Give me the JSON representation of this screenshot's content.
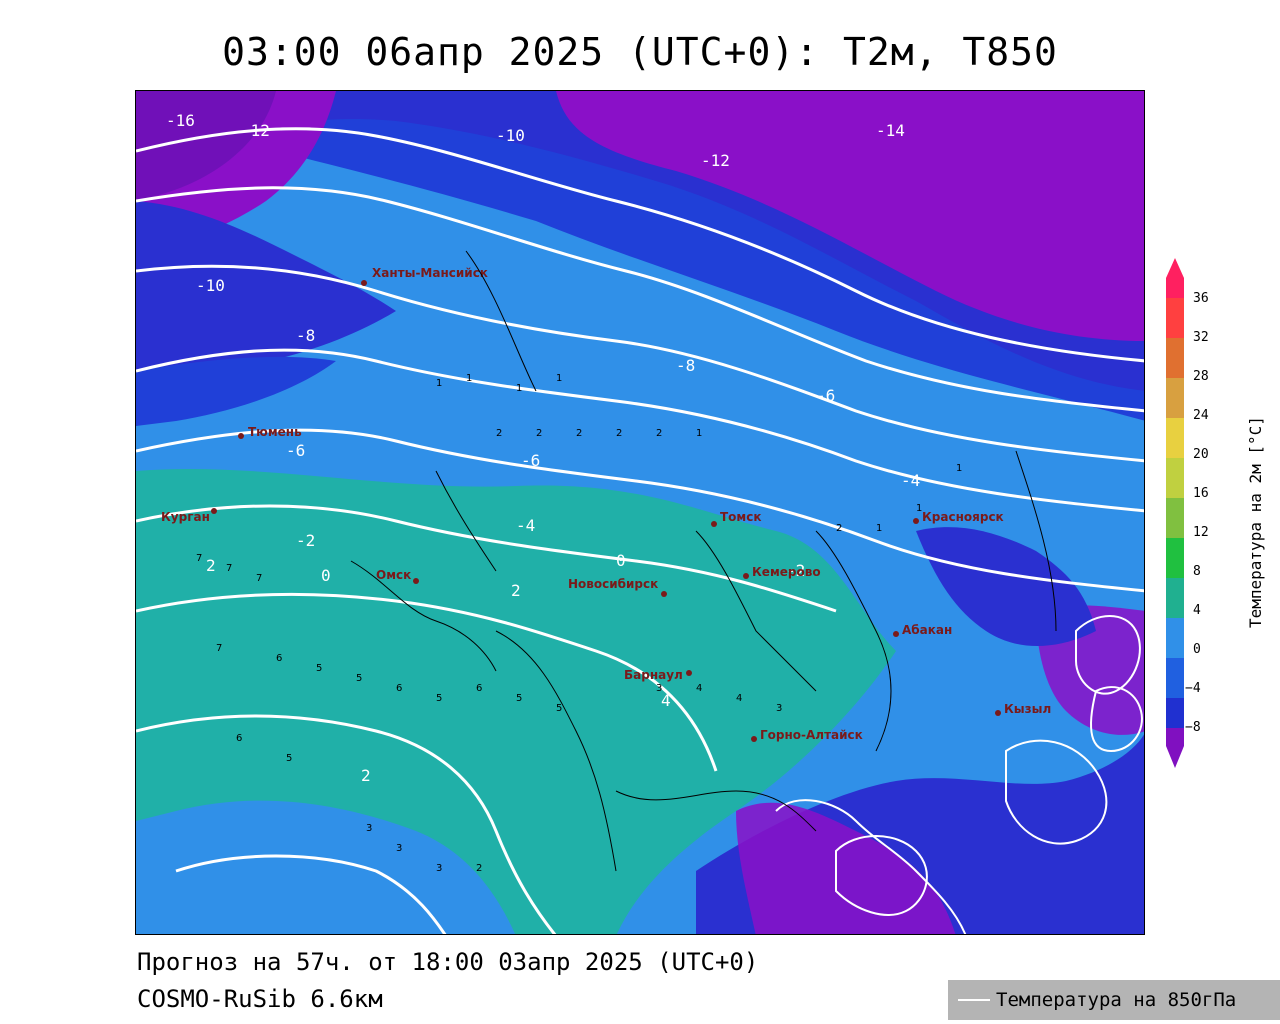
{
  "header": {
    "title": "03:00 06апр 2025 (UTC+0): Т2м, Т850"
  },
  "footer": {
    "forecast": "Прогноз на 57ч. от 18:00 03апр 2025 (UTC+0)",
    "model": "COSMO-RuSib 6.6км"
  },
  "legend": {
    "contour_label": "Температура на 850гПа"
  },
  "colorbar": {
    "title": "Температура на 2м [°C]",
    "ticks": [
      "36",
      "32",
      "28",
      "24",
      "20",
      "16",
      "12",
      "8",
      "4",
      "0",
      "−4",
      "−8"
    ],
    "colors": [
      "#ff4040",
      "#e07030",
      "#d8a040",
      "#e8d040",
      "#c0d040",
      "#80c040",
      "#20c040",
      "#20b090",
      "#3090e8",
      "#2060e0",
      "#2030d0",
      "#8010c0"
    ]
  },
  "cities": [
    {
      "name": "Ханты-Мансийск"
    },
    {
      "name": "Тюмень"
    },
    {
      "name": "Курган"
    },
    {
      "name": "Омск"
    },
    {
      "name": "Новосибирск"
    },
    {
      "name": "Томск"
    },
    {
      "name": "Кемерово"
    },
    {
      "name": "Красноярск"
    },
    {
      "name": "Абакан"
    },
    {
      "name": "Барнаул"
    },
    {
      "name": "Горно-Алтайск"
    },
    {
      "name": "Кызыл"
    }
  ],
  "isotherm_labels": [
    "-16",
    "-14",
    "-12",
    "-10",
    "-8",
    "-6",
    "-4",
    "-2",
    "0",
    "2",
    "4",
    "6"
  ]
}
